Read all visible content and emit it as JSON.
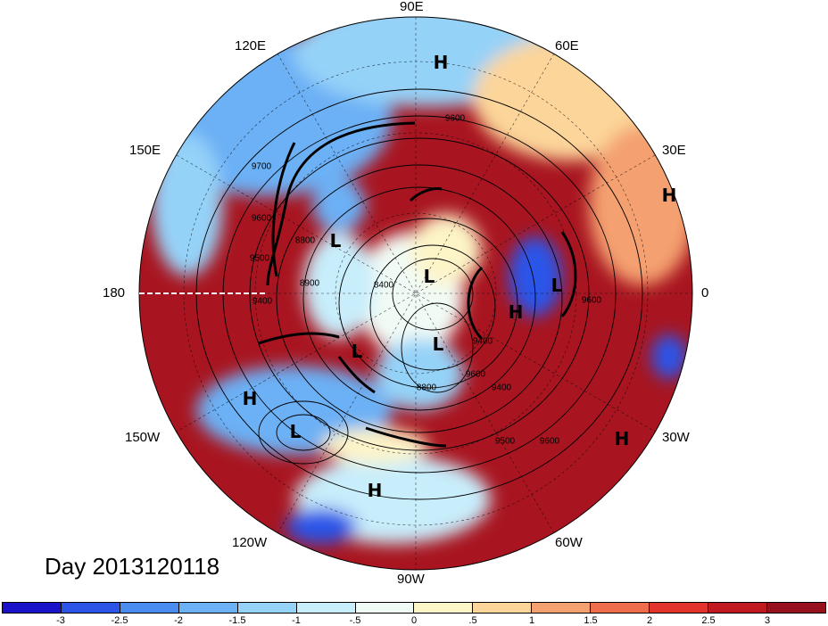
{
  "title": "Day 2013120118",
  "longitude_labels": [
    {
      "id": "90E",
      "text": "90E"
    },
    {
      "id": "60E",
      "text": "60E"
    },
    {
      "id": "30E",
      "text": "30E"
    },
    {
      "id": "0",
      "text": "0"
    },
    {
      "id": "30W",
      "text": "30W"
    },
    {
      "id": "60W",
      "text": "60W"
    },
    {
      "id": "90W",
      "text": "90W"
    },
    {
      "id": "120W",
      "text": "120W"
    },
    {
      "id": "150W",
      "text": "150W"
    },
    {
      "id": "180",
      "text": "180"
    },
    {
      "id": "150E",
      "text": "150E"
    },
    {
      "id": "120E",
      "text": "120E"
    }
  ],
  "pressure_systems": [
    "H",
    "H",
    "L",
    "L",
    "H",
    "L",
    "L",
    "L",
    "H",
    "L",
    "H",
    "H"
  ],
  "contour_labels": [
    "9600",
    "9700",
    "9600",
    "9500",
    "9400",
    "8900",
    "8800",
    "8400",
    "9400",
    "9600",
    "9500",
    "9600",
    "8800",
    "9600",
    "9400"
  ],
  "colorbar": {
    "colors": [
      "#1a12c8",
      "#2c55e8",
      "#4a8cf0",
      "#6cb0f5",
      "#95d2f8",
      "#c8edfb",
      "#f1fbf5",
      "#fdf4c8",
      "#fcd59a",
      "#f4a070",
      "#ef6c4c",
      "#e2342c",
      "#c01a20",
      "#96101e"
    ],
    "ticks": [
      "-3",
      "-2.5",
      "-2",
      "-1.5",
      "-1",
      "-.5",
      "0",
      ".5",
      "1",
      "1.5",
      "2",
      "2.5",
      "3"
    ]
  },
  "palette": {
    "ocean_bg": "#96101e",
    "ocean_hot": "#c01a20"
  }
}
